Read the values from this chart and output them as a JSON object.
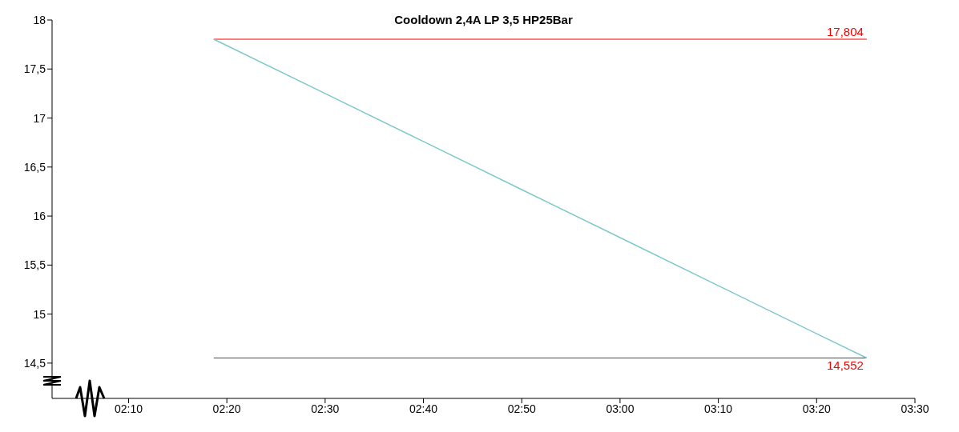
{
  "chart_data": {
    "type": "line",
    "title": "Cooldown 2,4A LP 3,5 HP25Bar",
    "x": [
      2.3111,
      2.5,
      2.6667,
      2.8333,
      3.0,
      3.1667,
      3.3333,
      3.4183
    ],
    "series": [
      {
        "color": "#7ec8cc",
        "values": [
          17.804,
          17.25,
          16.76,
          16.27,
          15.78,
          15.29,
          14.8,
          14.552
        ]
      }
    ],
    "xlim": [
      2.037,
      3.5
    ],
    "xticks": [
      {
        "value": 2.16667,
        "label": "02:10"
      },
      {
        "value": 2.33333,
        "label": "02:20"
      },
      {
        "value": 2.5,
        "label": "02:30"
      },
      {
        "value": 2.66667,
        "label": "02:40"
      },
      {
        "value": 2.83333,
        "label": "02:50"
      },
      {
        "value": 3.0,
        "label": "03:00"
      },
      {
        "value": 3.16667,
        "label": "03:10"
      },
      {
        "value": 3.33333,
        "label": "03:20"
      },
      {
        "value": 3.5,
        "label": "03:30"
      }
    ],
    "ylim": [
      14.14,
      18
    ],
    "yticks": [
      {
        "value": 14.5,
        "label": "14,5"
      },
      {
        "value": 15,
        "label": "15"
      },
      {
        "value": 15.5,
        "label": "15,5"
      },
      {
        "value": 16,
        "label": "16"
      },
      {
        "value": 16.5,
        "label": "16,5"
      },
      {
        "value": 17,
        "label": "17"
      },
      {
        "value": 17.5,
        "label": "17,5"
      },
      {
        "value": 18,
        "label": "18"
      }
    ],
    "ref_lines": [
      {
        "axis": "y",
        "value": 17.804,
        "label": "17,804",
        "color": "#ff0000"
      },
      {
        "axis": "y",
        "value": 14.552,
        "label": "14,552",
        "color": "#ff0000"
      }
    ],
    "grid": false,
    "legend": false,
    "marker": "none",
    "line_style": "solid"
  }
}
